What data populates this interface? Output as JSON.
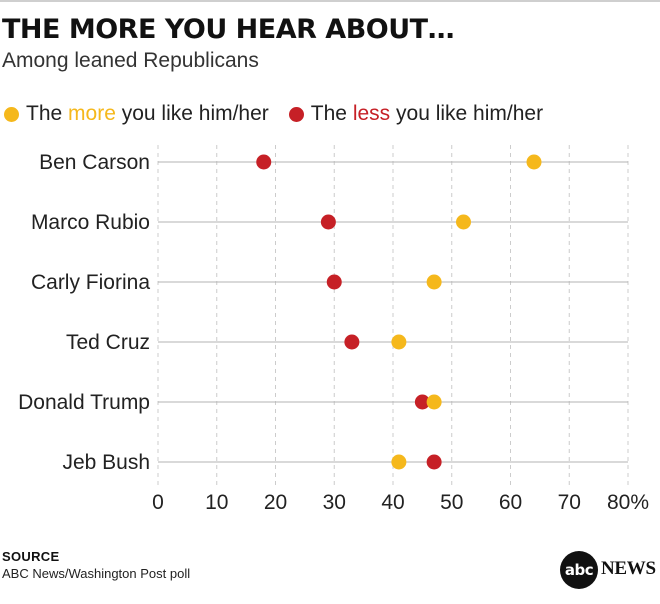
{
  "header": {
    "title": "THE MORE YOU HEAR ABOUT…",
    "subtitle": "Among leaned Republicans"
  },
  "legend": {
    "more": {
      "before": "The ",
      "highlight": "more",
      "after": " you like him/her",
      "color": "#F5B81C"
    },
    "less": {
      "before": "The ",
      "highlight": "less",
      "after": " you like him/her",
      "color": "#C62026"
    }
  },
  "chart_data": {
    "type": "scatter",
    "subtype": "dot-plot",
    "categories": [
      "Ben Carson",
      "Marco Rubio",
      "Carly Fiorina",
      "Ted Cruz",
      "Donald Trump",
      "Jeb Bush"
    ],
    "series": [
      {
        "name": "The more you like him/her",
        "color": "#F5B81C",
        "values": [
          64,
          52,
          47,
          41,
          47,
          41
        ]
      },
      {
        "name": "The less you like him/her",
        "color": "#C62026",
        "values": [
          18,
          29,
          30,
          33,
          45,
          47
        ]
      }
    ],
    "xlim": [
      0,
      80
    ],
    "ticks": [
      "0",
      "10",
      "20",
      "30",
      "40",
      "50",
      "60",
      "70",
      "80%"
    ],
    "tick_values": [
      0,
      10,
      20,
      30,
      40,
      50,
      60,
      70,
      80
    ],
    "grid": "vertical dashed",
    "legend_position": "top-left"
  },
  "footer": {
    "source_label": "SOURCE",
    "source_text": "ABC News/Washington Post poll",
    "logo_text": "abc",
    "logo_word": "NEWS"
  }
}
